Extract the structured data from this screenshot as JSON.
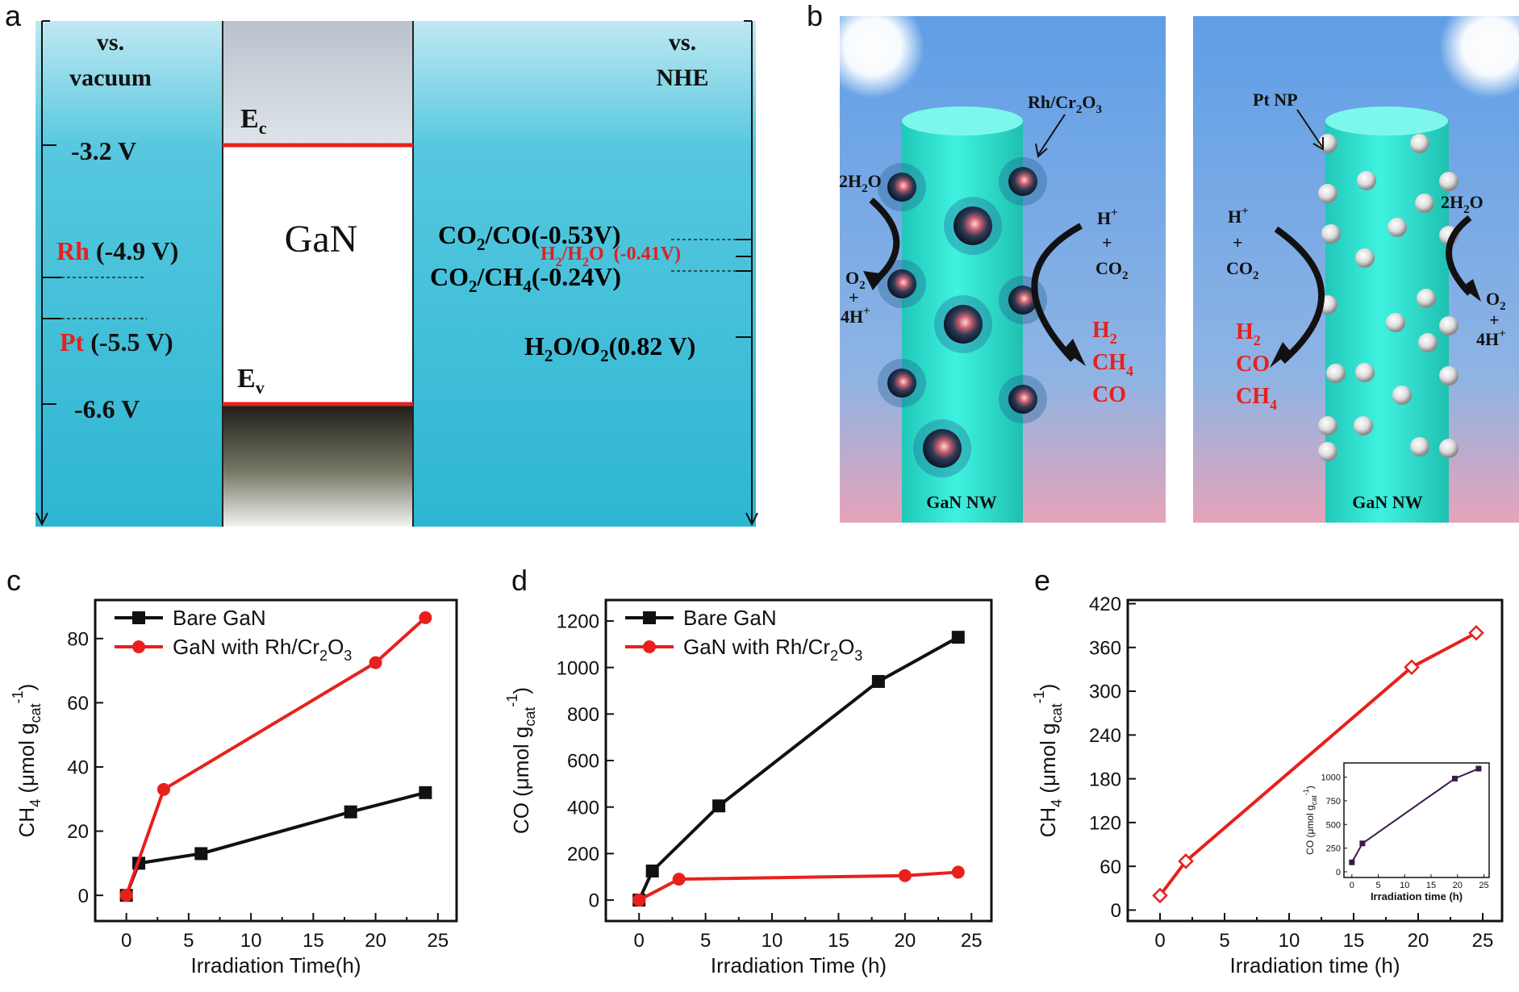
{
  "panel_labels": {
    "a": "a",
    "b": "b",
    "c": "c",
    "d": "d",
    "e": "e"
  },
  "energy_diagram": {
    "left_header": [
      "vs.",
      "vacuum"
    ],
    "right_header": [
      "vs.",
      "NHE"
    ],
    "material": "GaN",
    "ec_label": "E",
    "ec_sub": "c",
    "ev_label": "E",
    "ev_sub": "v",
    "cb_value": "-3.2 V",
    "vb_value": "-6.6 V",
    "rh_name": "Rh",
    "rh_value": "(-4.9 V)",
    "pt_name": "Pt",
    "pt_value": "(-5.5 V)",
    "redox": [
      {
        "t1": "CO",
        "s1": "2",
        "t2": "/CO",
        "s2": "",
        "t3": "(-0.53V)",
        "color": "#000000"
      },
      {
        "t1": "H",
        "s1": "2",
        "t2": "/H",
        "s2": "2",
        "t3": "O  (-0.41V)",
        "color": "#e02020"
      },
      {
        "t1": "CO",
        "s1": "2",
        "t2": "/CH",
        "s2": "4",
        "t3": "(-0.24V)",
        "color": "#000000"
      },
      {
        "t1": "H",
        "s1": "2",
        "t2": "O/O",
        "s2": "2",
        "t3": "(0.82 V)",
        "color": "#000000"
      }
    ]
  },
  "nanowire_left": {
    "cocatalyst": "Rh/Cr",
    "cocatalyst_sub1": "2",
    "cocatalyst_mid": "O",
    "cocatalyst_sub2": "3",
    "reactant_left": "2H",
    "reactant_left_sub": "2",
    "reactant_left_end": "O",
    "product_left_1": "O",
    "product_left_1_sub": "2",
    "product_left_2": "+",
    "product_left_3": "4H",
    "product_left_3_sup": "+",
    "reactant_right_1": "H",
    "reactant_right_1_sup": "+",
    "reactant_right_2": "+",
    "reactant_right_3": "CO",
    "reactant_right_3_sub": "2",
    "products": [
      {
        "t": "H",
        "s": "2"
      },
      {
        "t": "CH",
        "s": "4"
      },
      {
        "t": "CO",
        "s": ""
      }
    ],
    "nw_label": "GaN NW"
  },
  "nanowire_right": {
    "cocatalyst": "Pt NP",
    "reactant_left_1": "H",
    "reactant_left_1_sup": "+",
    "reactant_left_2": "+",
    "reactant_left_3": "CO",
    "reactant_left_3_sub": "2",
    "products": [
      {
        "t": "H",
        "s": "2"
      },
      {
        "t": "CO",
        "s": ""
      },
      {
        "t": "CH",
        "s": "4"
      }
    ],
    "reactant_right": "2H",
    "reactant_right_sub": "2",
    "reactant_right_end": "O",
    "product_right_1": "O",
    "product_right_1_sub": "2",
    "product_right_2": "+",
    "product_right_3": "4H",
    "product_right_3_sup": "+",
    "nw_label": "GaN NW"
  },
  "colors": {
    "red": "#e8201c",
    "black": "#111111",
    "nanowire": "#33e0d0",
    "water": "#3cbfd9"
  },
  "chart_data": [
    {
      "type": "line",
      "panel": "c",
      "xlabel": "Irradiation Time(h)",
      "ylabel_main": "CH",
      "ylabel_sub": "4",
      "ylabel_unit": " (μmol g",
      "ylabel_unit_sub": "cat",
      "ylabel_unit_sup": "-1",
      "ylabel_close": ")",
      "xlim": [
        -2.5,
        26.5
      ],
      "ylim": [
        -8,
        92
      ],
      "xticks": [
        0,
        5,
        10,
        15,
        20,
        25
      ],
      "yticks": [
        0,
        20,
        40,
        60,
        80
      ],
      "series": [
        {
          "name": "Bare GaN",
          "marker": "square",
          "color": "#111111",
          "x": [
            0,
            1,
            6,
            18,
            24
          ],
          "y": [
            0,
            10,
            13,
            26,
            32
          ]
        },
        {
          "name": "GaN with Rh/Cr",
          "name_sub1": "2",
          "name_mid": "O",
          "name_sub2": "3",
          "marker": "circle",
          "color": "#e8201c",
          "x": [
            0,
            3,
            20,
            24
          ],
          "y": [
            0,
            33,
            72.5,
            86.5
          ]
        }
      ]
    },
    {
      "type": "line",
      "panel": "d",
      "xlabel": "Irradiation Time (h)",
      "ylabel_main": "CO",
      "ylabel_sub": "",
      "ylabel_unit": " (μmol g",
      "ylabel_unit_sub": "cat",
      "ylabel_unit_sup": "-1",
      "ylabel_close": ")",
      "xlim": [
        -2.5,
        26.5
      ],
      "ylim": [
        -90,
        1290
      ],
      "xticks": [
        0,
        5,
        10,
        15,
        20,
        25
      ],
      "yticks": [
        0,
        200,
        400,
        600,
        800,
        1000,
        1200
      ],
      "series": [
        {
          "name": "Bare GaN",
          "marker": "square",
          "color": "#111111",
          "x": [
            0,
            1,
            6,
            18,
            24
          ],
          "y": [
            0,
            125,
            405,
            940,
            1130
          ]
        },
        {
          "name": "GaN with Rh/Cr",
          "name_sub1": "2",
          "name_mid": "O",
          "name_sub2": "3",
          "marker": "circle",
          "color": "#e8201c",
          "x": [
            0,
            3,
            20,
            24
          ],
          "y": [
            0,
            90,
            105,
            120
          ]
        }
      ]
    },
    {
      "type": "line",
      "panel": "e",
      "xlabel": "Irradiation time (h)",
      "ylabel_main": "CH",
      "ylabel_sub": "4",
      "ylabel_unit": " (μmol g",
      "ylabel_unit_sub": "cat",
      "ylabel_unit_sup": "-1",
      "ylabel_close": ")",
      "xlim": [
        -2.5,
        26.5
      ],
      "ylim": [
        -15,
        425
      ],
      "xticks": [
        0,
        5,
        10,
        15,
        20,
        25
      ],
      "yticks": [
        0,
        60,
        120,
        180,
        240,
        300,
        360,
        420
      ],
      "series": [
        {
          "marker": "diamond",
          "color": "#e8201c",
          "x": [
            0,
            2,
            19.5,
            24.5
          ],
          "y": [
            20,
            67,
            333,
            380
          ]
        }
      ],
      "inset": {
        "xlabel": "Irradiation time (h)",
        "ylabel_main": "CO (μmol g",
        "ylabel_sub": "cat",
        "ylabel_sup": "-1",
        "ylabel_close": ")",
        "xlim": [
          -1.5,
          26
        ],
        "ylim": [
          -60,
          1150
        ],
        "xticks": [
          0,
          5,
          10,
          15,
          20,
          25
        ],
        "yticks": [
          0,
          250,
          500,
          750,
          1000
        ],
        "series": [
          {
            "marker": "square",
            "color": "#3a1a4a",
            "x": [
              0,
              2,
              19.5,
              24
            ],
            "y": [
              100,
              300,
              985,
              1090
            ]
          }
        ]
      }
    }
  ]
}
